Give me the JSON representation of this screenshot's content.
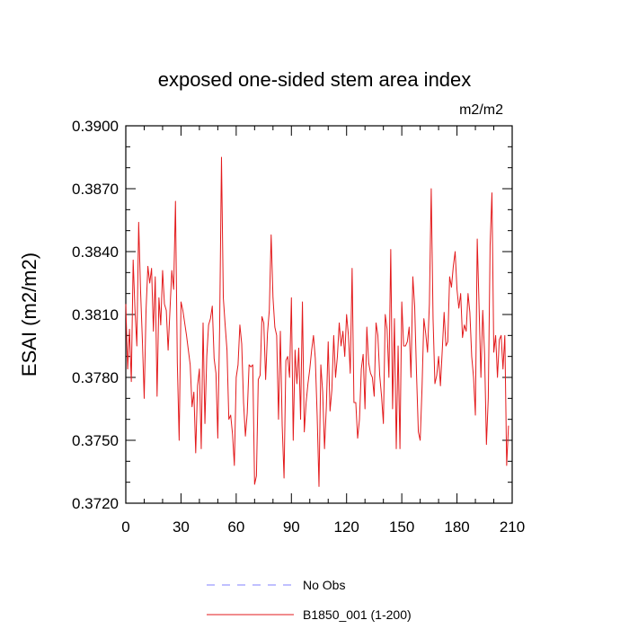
{
  "chart_data": {
    "type": "line",
    "title": "exposed one-sided stem area index",
    "units_label": "m2/m2",
    "xlabel": "",
    "ylabel": "ESAI  (m2/m2)",
    "xlim": [
      0,
      210
    ],
    "ylim": [
      0.372,
      0.39
    ],
    "x_ticks": [
      0,
      30,
      60,
      90,
      120,
      150,
      180,
      210
    ],
    "x_tick_labels": [
      "0",
      "30",
      "60",
      "90",
      "120",
      "150",
      "180",
      "210"
    ],
    "y_ticks": [
      0.372,
      0.375,
      0.378,
      0.381,
      0.384,
      0.387,
      0.39
    ],
    "y_tick_labels": [
      "0.3720",
      "0.3750",
      "0.3780",
      "0.3810",
      "0.3840",
      "0.3870",
      "0.3900"
    ],
    "legend_position": "bottom-center",
    "series": [
      {
        "name": "No Obs",
        "color": "#8080ff",
        "dash": "dashed",
        "x": [],
        "values": []
      },
      {
        "name": "B1850_001 (1-200)",
        "color": "#e31a1c",
        "dash": "solid",
        "x_start": 0,
        "x_step": 1,
        "values": [
          0.3815,
          0.3784,
          0.3803,
          0.3778,
          0.3836,
          0.3812,
          0.3795,
          0.3854,
          0.3822,
          0.3798,
          0.377,
          0.3812,
          0.3833,
          0.3825,
          0.3832,
          0.3802,
          0.3828,
          0.3771,
          0.3818,
          0.3805,
          0.3831,
          0.3815,
          0.3812,
          0.3793,
          0.3812,
          0.3831,
          0.3822,
          0.3864,
          0.3787,
          0.375,
          0.3816,
          0.3812,
          0.3806,
          0.38,
          0.3793,
          0.3786,
          0.3766,
          0.3773,
          0.3744,
          0.3776,
          0.3784,
          0.3746,
          0.3806,
          0.3758,
          0.379,
          0.3805,
          0.3808,
          0.3814,
          0.3789,
          0.3782,
          0.3751,
          0.3804,
          0.3885,
          0.3818,
          0.3805,
          0.3793,
          0.376,
          0.3762,
          0.3753,
          0.3738,
          0.378,
          0.3786,
          0.3805,
          0.3796,
          0.3768,
          0.3752,
          0.3763,
          0.3786,
          0.3785,
          0.3786,
          0.3729,
          0.3733,
          0.3779,
          0.3781,
          0.3809,
          0.3806,
          0.3779,
          0.3801,
          0.3812,
          0.3848,
          0.3818,
          0.3804,
          0.38,
          0.376,
          0.3802,
          0.3757,
          0.3732,
          0.3788,
          0.379,
          0.378,
          0.3818,
          0.375,
          0.3793,
          0.3777,
          0.3794,
          0.376,
          0.3816,
          0.3754,
          0.3768,
          0.3777,
          0.3784,
          0.3793,
          0.38,
          0.3789,
          0.3762,
          0.3728,
          0.3786,
          0.3773,
          0.3746,
          0.3766,
          0.3797,
          0.3764,
          0.3774,
          0.38,
          0.378,
          0.379,
          0.3806,
          0.3795,
          0.3802,
          0.379,
          0.381,
          0.38,
          0.3782,
          0.3832,
          0.3768,
          0.3768,
          0.3751,
          0.376,
          0.3784,
          0.3791,
          0.3765,
          0.3804,
          0.3787,
          0.3782,
          0.378,
          0.3771,
          0.3806,
          0.38,
          0.3781,
          0.3771,
          0.3758,
          0.381,
          0.3803,
          0.378,
          0.3841,
          0.3765,
          0.3808,
          0.3746,
          0.3795,
          0.3746,
          0.3816,
          0.3795,
          0.3795,
          0.3797,
          0.3804,
          0.378,
          0.3828,
          0.3814,
          0.3782,
          0.3754,
          0.375,
          0.3775,
          0.3808,
          0.3801,
          0.3792,
          0.3815,
          0.387,
          0.3808,
          0.3777,
          0.3781,
          0.379,
          0.3776,
          0.3793,
          0.3811,
          0.3795,
          0.3797,
          0.3828,
          0.3823,
          0.3833,
          0.384,
          0.3822,
          0.3813,
          0.382,
          0.3799,
          0.3805,
          0.3802,
          0.382,
          0.3811,
          0.379,
          0.378,
          0.3762,
          0.3846,
          0.3814,
          0.378,
          0.3812,
          0.3791,
          0.3748,
          0.377,
          0.3843,
          0.3868,
          0.3792,
          0.38,
          0.378,
          0.3798,
          0.38,
          0.3784,
          0.38,
          0.3738,
          0.3757
        ]
      }
    ]
  }
}
